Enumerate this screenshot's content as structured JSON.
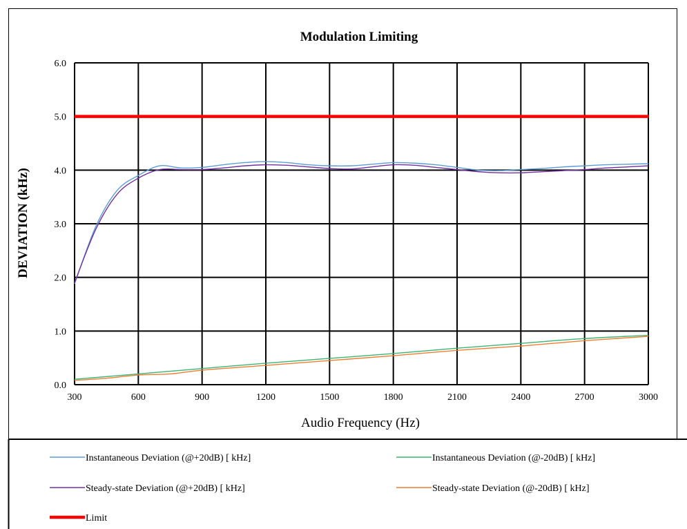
{
  "chart_data": {
    "type": "line",
    "title": "Modulation Limiting",
    "xlabel": "Audio Frequency (Hz)",
    "ylabel": "DEVIATION (kHz)",
    "xlim": [
      300,
      3000
    ],
    "ylim": [
      0,
      6
    ],
    "xticks": [
      "300",
      "600",
      "900",
      "1200",
      "1500",
      "1800",
      "2100",
      "2400",
      "2700",
      "3000"
    ],
    "yticks": [
      "0.0",
      "1.0",
      "2.0",
      "3.0",
      "4.0",
      "5.0",
      "6.0"
    ],
    "grid": true,
    "legend_position": "bottom",
    "series": [
      {
        "name": "Instantaneous Deviation (@+20dB) [ kHz]",
        "color": "#5b9bd5",
        "x": [
          300,
          400,
          500,
          600,
          700,
          800,
          900,
          1000,
          1100,
          1200,
          1300,
          1400,
          1500,
          1600,
          1700,
          1800,
          1900,
          2000,
          2100,
          2200,
          2300,
          2400,
          2500,
          2600,
          2700,
          2800,
          2900,
          3000
        ],
        "y": [
          1.88,
          2.95,
          3.62,
          3.9,
          4.08,
          4.04,
          4.05,
          4.1,
          4.14,
          4.16,
          4.14,
          4.1,
          4.08,
          4.08,
          4.11,
          4.14,
          4.13,
          4.1,
          4.05,
          4.0,
          3.99,
          4.01,
          4.03,
          4.06,
          4.08,
          4.1,
          4.11,
          4.12
        ]
      },
      {
        "name": "Instantaneous Deviation (@-20dB) [ kHz]",
        "color": "#3cb371",
        "x": [
          300,
          600,
          900,
          1200,
          1500,
          1800,
          2100,
          2400,
          2700,
          3000
        ],
        "y": [
          0.1,
          0.2,
          0.3,
          0.4,
          0.49,
          0.58,
          0.68,
          0.77,
          0.86,
          0.92
        ]
      },
      {
        "name": "Steady-state Deviation (@+20dB) [ kHz]",
        "color": "#7030a0",
        "x": [
          300,
          400,
          500,
          600,
          700,
          800,
          900,
          1000,
          1100,
          1200,
          1300,
          1400,
          1500,
          1600,
          1700,
          1800,
          1900,
          2000,
          2100,
          2200,
          2300,
          2400,
          2500,
          2600,
          2700,
          2800,
          2900,
          3000
        ],
        "y": [
          1.9,
          2.9,
          3.55,
          3.85,
          4.01,
          4.01,
          4.01,
          4.04,
          4.08,
          4.1,
          4.09,
          4.06,
          4.03,
          4.02,
          4.06,
          4.1,
          4.09,
          4.05,
          4.01,
          3.97,
          3.95,
          3.95,
          3.97,
          3.99,
          4.01,
          4.04,
          4.06,
          4.08
        ]
      },
      {
        "name": "Steady-state Deviation (@-20dB) [ kHz]",
        "color": "#ed7d31",
        "x": [
          300,
          450,
          600,
          750,
          900,
          1200,
          1500,
          1800,
          2100,
          2400,
          2700,
          3000
        ],
        "y": [
          0.08,
          0.12,
          0.18,
          0.2,
          0.27,
          0.36,
          0.45,
          0.54,
          0.64,
          0.72,
          0.82,
          0.9
        ]
      },
      {
        "name": "Limit",
        "color": "#ff0000",
        "x": [
          300,
          3000
        ],
        "y": [
          5.0,
          5.0
        ]
      }
    ]
  }
}
